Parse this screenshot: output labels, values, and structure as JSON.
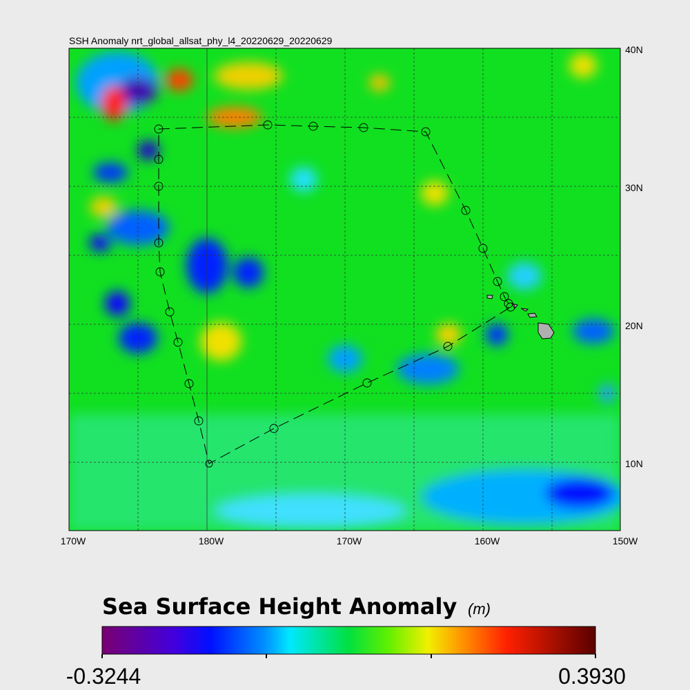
{
  "title": "SSH Anomaly nrt_global_allsat_phy_l4_20220629_20220629",
  "map": {
    "x_labels": [
      "170W",
      "180W",
      "170W",
      "160W",
      "150W"
    ],
    "y_labels": [
      "40N",
      "30N",
      "20N",
      "10N"
    ]
  },
  "colorbar": {
    "title": "Sea Surface Height Anomaly",
    "unit": "(m)",
    "min": "-0.3244",
    "max": "0.3930"
  }
}
